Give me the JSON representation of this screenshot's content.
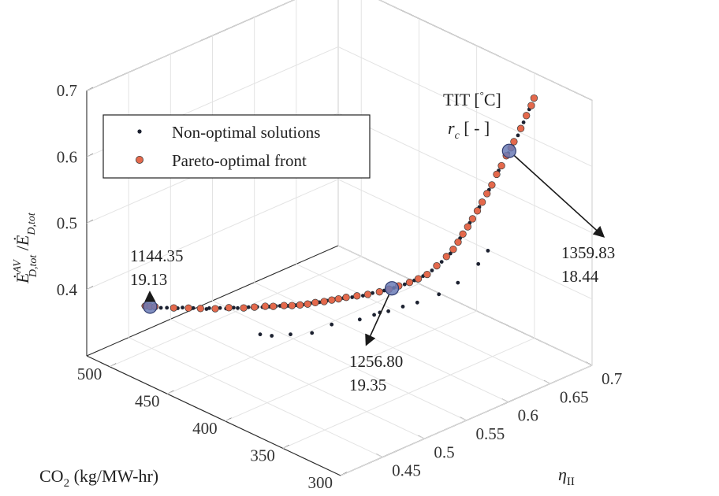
{
  "chart_data": {
    "type": "scatter",
    "dimensions": 3,
    "title": "",
    "xlabel": "η_II",
    "ylabel": "CO2 (kg/MW-hr)",
    "zlabel": "Ė^AV_D,tot / Ė_D,tot",
    "x_ticks": [
      "0.45",
      "0.5",
      "0.55",
      "0.6",
      "0.65",
      "0.7"
    ],
    "y_ticks": [
      "300",
      "350",
      "400",
      "450",
      "500"
    ],
    "z_ticks": [
      "0.4",
      "0.5",
      "0.6",
      "0.7"
    ],
    "xlim": [
      0.4,
      0.7
    ],
    "ylim": [
      300,
      520
    ],
    "zlim": [
      0.3,
      0.7
    ],
    "grid": true,
    "legend": {
      "position": "top-left",
      "entries": [
        {
          "name": "Non-optimal solutions",
          "marker": "dot",
          "color": "#1c2130"
        },
        {
          "name": "Pareto-optimal front",
          "marker": "circle",
          "color": "#e4694c"
        }
      ]
    },
    "header_labels": {
      "line1": "TIT [°C]",
      "line2": "r_c   [ - ]"
    },
    "annotations": [
      {
        "line1": "1144.35",
        "line2": "19.13"
      },
      {
        "line1": "1256.80",
        "line2": "19.35"
      },
      {
        "line1": "1359.83",
        "line2": "18.44"
      }
    ],
    "series": [
      {
        "name": "Pareto-optimal front",
        "color": "#e4694c",
        "points": [
          [
            0.452,
            507,
            0.357
          ],
          [
            0.455,
            505,
            0.356
          ],
          [
            0.458,
            503,
            0.356
          ],
          [
            0.468,
            494,
            0.356
          ],
          [
            0.476,
            487,
            0.357
          ],
          [
            0.482,
            481,
            0.358
          ],
          [
            0.49,
            474,
            0.359
          ],
          [
            0.498,
            468,
            0.361
          ],
          [
            0.506,
            461,
            0.362
          ],
          [
            0.512,
            456,
            0.364
          ],
          [
            0.518,
            451,
            0.366
          ],
          [
            0.522,
            447,
            0.367
          ],
          [
            0.528,
            442,
            0.369
          ],
          [
            0.532,
            438,
            0.37
          ],
          [
            0.536,
            434,
            0.372
          ],
          [
            0.541,
            431,
            0.373
          ],
          [
            0.546,
            428,
            0.375
          ],
          [
            0.551,
            424,
            0.377
          ],
          [
            0.556,
            421,
            0.379
          ],
          [
            0.56,
            418,
            0.381
          ],
          [
            0.565,
            415,
            0.383
          ],
          [
            0.571,
            410,
            0.386
          ],
          [
            0.577,
            405,
            0.389
          ],
          [
            0.584,
            400,
            0.393
          ],
          [
            0.59,
            396,
            0.397
          ],
          [
            0.596,
            392,
            0.402
          ],
          [
            0.602,
            387,
            0.408
          ],
          [
            0.607,
            383,
            0.414
          ],
          [
            0.612,
            379,
            0.421
          ],
          [
            0.618,
            375,
            0.434
          ],
          [
            0.624,
            371,
            0.448
          ],
          [
            0.628,
            368,
            0.459
          ],
          [
            0.631,
            366,
            0.47
          ],
          [
            0.634,
            364,
            0.482
          ],
          [
            0.637,
            362,
            0.493
          ],
          [
            0.64,
            360,
            0.505
          ],
          [
            0.643,
            358,
            0.517
          ],
          [
            0.646,
            356,
            0.53
          ],
          [
            0.649,
            354,
            0.543
          ],
          [
            0.652,
            352,
            0.556
          ],
          [
            0.655,
            350,
            0.572
          ],
          [
            0.658,
            348,
            0.585
          ],
          [
            0.661,
            346,
            0.6
          ],
          [
            0.664,
            344,
            0.612
          ],
          [
            0.666,
            343,
            0.621
          ],
          [
            0.67,
            340,
            0.641
          ],
          [
            0.674,
            338,
            0.66
          ],
          [
            0.677,
            336,
            0.675
          ],
          [
            0.679,
            335,
            0.686
          ]
        ]
      },
      {
        "name": "Non-optimal solutions",
        "color": "#1c2130",
        "points": [
          [
            0.451,
            508,
            0.357
          ],
          [
            0.454,
            506,
            0.355
          ],
          [
            0.457,
            504,
            0.357
          ],
          [
            0.461,
            500,
            0.355
          ],
          [
            0.464,
            497,
            0.356
          ],
          [
            0.47,
            492,
            0.356
          ],
          [
            0.473,
            490,
            0.357
          ],
          [
            0.479,
            485,
            0.357
          ],
          [
            0.485,
            478,
            0.358
          ],
          [
            0.487,
            477,
            0.359
          ],
          [
            0.493,
            472,
            0.36
          ],
          [
            0.496,
            469,
            0.36
          ],
          [
            0.501,
            466,
            0.361
          ],
          [
            0.503,
            464,
            0.361
          ],
          [
            0.509,
            459,
            0.363
          ],
          [
            0.511,
            457,
            0.363
          ],
          [
            0.514,
            455,
            0.364
          ],
          [
            0.516,
            452,
            0.365
          ],
          [
            0.52,
            449,
            0.366
          ],
          [
            0.524,
            446,
            0.367
          ],
          [
            0.526,
            444,
            0.368
          ],
          [
            0.53,
            440,
            0.369
          ],
          [
            0.534,
            436,
            0.371
          ],
          [
            0.538,
            433,
            0.372
          ],
          [
            0.543,
            430,
            0.374
          ],
          [
            0.548,
            426,
            0.376
          ],
          [
            0.553,
            423,
            0.378
          ],
          [
            0.558,
            420,
            0.38
          ],
          [
            0.563,
            416,
            0.382
          ],
          [
            0.568,
            412,
            0.384
          ],
          [
            0.574,
            407,
            0.387
          ],
          [
            0.58,
            403,
            0.391
          ],
          [
            0.587,
            398,
            0.395
          ],
          [
            0.593,
            394,
            0.399
          ],
          [
            0.599,
            389,
            0.405
          ],
          [
            0.605,
            385,
            0.411
          ],
          [
            0.61,
            381,
            0.418
          ],
          [
            0.615,
            377,
            0.427
          ],
          [
            0.621,
            373,
            0.44
          ],
          [
            0.626,
            369,
            0.453
          ],
          [
            0.632,
            365,
            0.476
          ],
          [
            0.638,
            361,
            0.499
          ],
          [
            0.644,
            357,
            0.523
          ],
          [
            0.65,
            353,
            0.549
          ],
          [
            0.656,
            349,
            0.578
          ],
          [
            0.662,
            345,
            0.604
          ],
          [
            0.668,
            341,
            0.631
          ],
          [
            0.672,
            339,
            0.65
          ],
          [
            0.676,
            337,
            0.669
          ],
          [
            0.505,
            446,
            0.335
          ],
          [
            0.512,
            441,
            0.333
          ],
          [
            0.522,
            432,
            0.337
          ],
          [
            0.531,
            420,
            0.344
          ],
          [
            0.549,
            416,
            0.35
          ],
          [
            0.566,
            404,
            0.358
          ],
          [
            0.575,
            398,
            0.365
          ],
          [
            0.579,
            396,
            0.368
          ],
          [
            0.585,
            393,
            0.369
          ],
          [
            0.594,
            387,
            0.376
          ],
          [
            0.603,
            381,
            0.382
          ],
          [
            0.615,
            371,
            0.396
          ],
          [
            0.628,
            364,
            0.412
          ],
          [
            0.64,
            355,
            0.441
          ],
          [
            0.646,
            351,
            0.461
          ]
        ]
      },
      {
        "name": "",
        "color": "#6b7bb6",
        "points": [
          [
            0.455,
            505,
            0.356
          ],
          [
            0.592,
            395,
            0.398
          ],
          [
            0.663,
            345,
            0.607
          ]
        ]
      }
    ]
  }
}
